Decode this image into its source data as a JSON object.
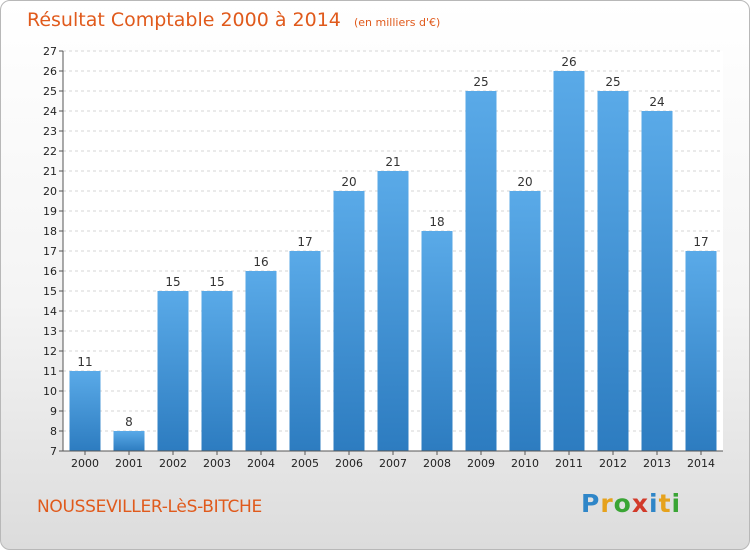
{
  "header": {
    "title": "Résultat Comptable 2000 à 2014",
    "unit": "(en milliers d'€)"
  },
  "footer": {
    "place": "NOUSSEVILLER-LèS-BITCHE",
    "logo": {
      "letters": [
        "P",
        "r",
        "o",
        "x",
        "i",
        "t",
        "i"
      ],
      "colors": [
        "#2f86c8",
        "#e6a21c",
        "#3aa535",
        "#d23a2a",
        "#2f86c8",
        "#e6a21c",
        "#3aa535"
      ]
    }
  },
  "colors": {
    "bar_top": "#5aaae8",
    "bar_bottom": "#2d7cc0",
    "accent": "#e05a1c"
  },
  "chart_data": {
    "type": "bar",
    "title": "Résultat Comptable 2000 à 2014",
    "categories": [
      "2000",
      "2001",
      "2002",
      "2003",
      "2004",
      "2005",
      "2006",
      "2007",
      "2008",
      "2009",
      "2010",
      "2011",
      "2012",
      "2013",
      "2014"
    ],
    "values": [
      11,
      8,
      15,
      15,
      16,
      17,
      20,
      21,
      18,
      25,
      20,
      26,
      25,
      24,
      17
    ],
    "ylim": [
      7,
      27
    ],
    "yticks": [
      7,
      8,
      9,
      10,
      11,
      12,
      13,
      14,
      15,
      16,
      17,
      18,
      19,
      20,
      21,
      22,
      23,
      24,
      25,
      26,
      27
    ],
    "grid": true,
    "legend": "none"
  }
}
